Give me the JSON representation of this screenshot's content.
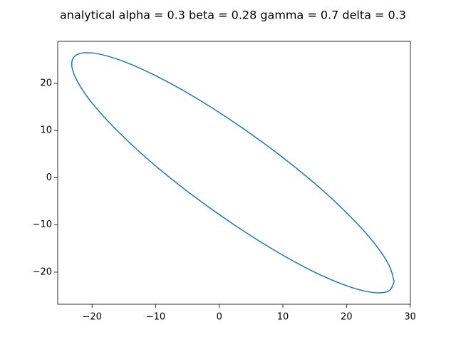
{
  "chart_data": {
    "type": "line",
    "title": "analytical alpha = 0.3 beta = 0.28 gamma = 0.7 delta = 0.3",
    "x": [
      27.5,
      26.64,
      24.1,
      20.07,
      14.83,
      8.71,
      2.15,
      -4.41,
      -10.53,
      -15.77,
      -19.8,
      -22.34,
      -23.2,
      -22.34,
      -19.8,
      -15.77,
      -10.53,
      -4.41,
      2.15,
      8.71,
      14.83,
      20.07,
      24.1,
      26.64,
      27.5
    ],
    "series": [
      {
        "color": "#1f77b4",
        "values": [
          -22.0,
          -24.0,
          -24.3,
          -22.9,
          -19.9,
          -15.4,
          -9.8,
          -3.5,
          3.1,
          9.6,
          15.5,
          20.5,
          24.1,
          26.1,
          26.4,
          25.0,
          21.97,
          17.5,
          11.9,
          5.6,
          -1.0,
          -7.5,
          -13.4,
          -18.4,
          -22.0
        ]
      }
    ],
    "xlim": [
      -25.4,
      30.05
    ],
    "ylim": [
      -26.8,
      28.9
    ],
    "xticks": [
      {
        "value": -20,
        "label": "−20"
      },
      {
        "value": -10,
        "label": "−10"
      },
      0,
      10,
      20,
      30
    ],
    "yticks": [
      {
        "value": -20,
        "label": "−20"
      },
      {
        "value": -10,
        "label": "−10"
      },
      0,
      10,
      20
    ]
  }
}
